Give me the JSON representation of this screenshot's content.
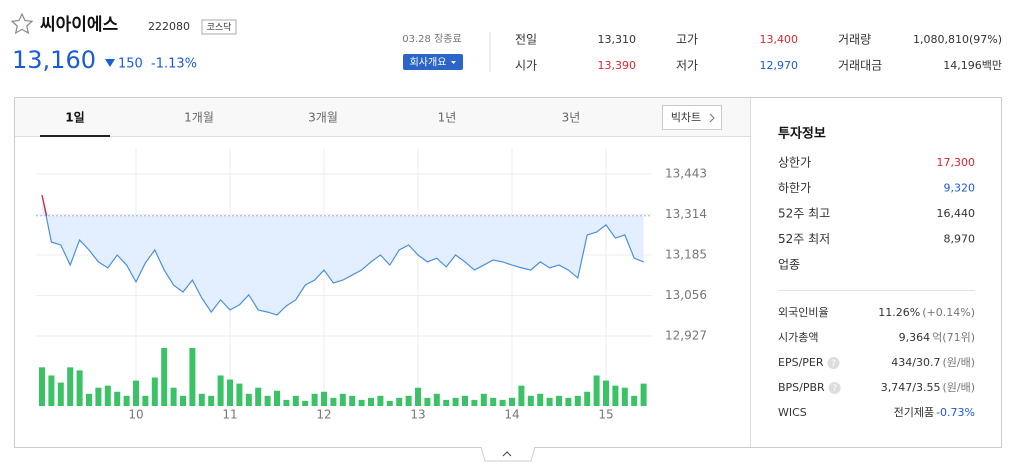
{
  "header": {
    "name": "씨아이에스",
    "code": "222080",
    "market": "코스닥",
    "price": "13,160",
    "change": "150",
    "rate": "-1.13%"
  },
  "status": "03.28 장종료",
  "company_button": "회사개요",
  "summary": [
    {
      "label": "전일",
      "value": "13,310"
    },
    {
      "label": "시가",
      "value": "13,390"
    },
    {
      "label": "고가",
      "value": "13,400"
    },
    {
      "label": "저가",
      "value": "12,970"
    },
    {
      "label": "거래량",
      "value": "1,080,810(97%)"
    },
    {
      "label": "거래대금",
      "value": "14,196백만"
    }
  ],
  "tabs": [
    "1일",
    "1개월",
    "3개월",
    "1년",
    "3년"
  ],
  "big_chart": "빅차트",
  "invest": {
    "title": "투자정보",
    "rows": [
      {
        "label": "상한가",
        "value": "17,300"
      },
      {
        "label": "하한가",
        "value": "9,320"
      },
      {
        "label": "52주 최고",
        "value": "16,440"
      },
      {
        "label": "52주 최저",
        "value": "8,970"
      },
      {
        "label": "업종"
      }
    ],
    "rows2": [
      {
        "label": "외국인비율",
        "value": "11.26%",
        "note": "(+0.14%)"
      },
      {
        "label": "시가총액",
        "value": "9,364",
        "note": "억(71위)"
      },
      {
        "label": "EPS/PER",
        "help": "?",
        "value": "434/30.7",
        "note": "(원/배)"
      },
      {
        "label": "BPS/PBR",
        "help": "?",
        "value": "3,747/3.55",
        "note": "(원/배)"
      },
      {
        "label": "WICS",
        "value": "전기제품",
        "note": "-0.73%"
      }
    ]
  },
  "chart_data": {
    "type": "line",
    "color": "#4a90e2",
    "volume_color": "#3cc266",
    "categories": [
      null,
      null,
      null,
      null,
      null,
      null,
      null,
      null,
      null,
      null,
      "10",
      null,
      null,
      null,
      null,
      null,
      null,
      null,
      null,
      null,
      "11",
      null,
      null,
      null,
      null,
      null,
      null,
      null,
      null,
      null,
      "12",
      null,
      null,
      null,
      null,
      null,
      null,
      null,
      null,
      null,
      "13",
      null,
      null,
      null,
      null,
      null,
      null,
      null,
      null,
      null,
      "14",
      null,
      null,
      null,
      null,
      null,
      null,
      null,
      null,
      null,
      "15",
      null,
      null,
      null,
      null
    ],
    "values": [
      13376,
      13226,
      13217,
      13153,
      13233,
      13201,
      13163,
      13144,
      13185,
      13153,
      13099,
      13160,
      13201,
      13137,
      13089,
      13067,
      13105,
      13048,
      13003,
      13042,
      13010,
      13026,
      13058,
      13010,
      13003,
      12994,
      13023,
      13042,
      13089,
      13105,
      13137,
      13096,
      13105,
      13121,
      13137,
      13163,
      13185,
      13153,
      13201,
      13217,
      13185,
      13163,
      13175,
      13147,
      13185,
      13163,
      13137,
      13153,
      13169,
      13163,
      13153,
      13144,
      13137,
      13163,
      13144,
      13153,
      13137,
      13112,
      13249,
      13258,
      13281,
      13239,
      13249,
      13175,
      13163
    ],
    "volume": [
      38,
      30,
      23,
      38,
      35,
      12,
      18,
      20,
      14,
      10,
      25,
      10,
      28,
      57,
      18,
      10,
      57,
      12,
      10,
      30,
      26,
      22,
      12,
      18,
      10,
      15,
      6,
      10,
      5,
      12,
      14,
      8,
      12,
      10,
      6,
      8,
      10,
      5,
      8,
      10,
      18,
      8,
      12,
      6,
      8,
      10,
      6,
      12,
      8,
      6,
      8,
      20,
      10,
      12,
      8,
      10,
      8,
      10,
      14,
      30,
      25,
      20,
      18,
      10,
      22
    ],
    "reference_line": 13310,
    "ylim": [
      12895,
      13526
    ],
    "yticks": [
      {
        "value": 13443,
        "label": "13,443"
      },
      {
        "value": 13314,
        "label": "13,314"
      },
      {
        "value": 13185,
        "label": "13,185"
      },
      {
        "value": 13056,
        "label": "13,056"
      },
      {
        "value": 12927,
        "label": "12,927"
      }
    ],
    "grid": true
  }
}
